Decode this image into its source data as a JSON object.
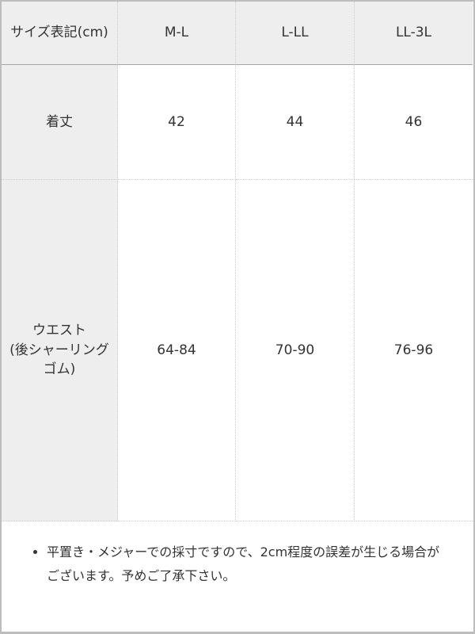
{
  "table": {
    "header": {
      "label": "サイズ表記(cm)",
      "sizes": [
        "M-L",
        "L-LL",
        "LL-3L"
      ]
    },
    "rows": [
      {
        "label": "着丈",
        "values": [
          "42",
          "44",
          "46"
        ]
      },
      {
        "label": "ウエスト\n(後シャーリングゴム)",
        "values": [
          "64-84",
          "70-90",
          "76-96"
        ]
      }
    ]
  },
  "note": {
    "text": "平置き・メジャーでの採寸ですので、2cm程度の誤差が生じる場合がございます。予めご了承下さい。"
  },
  "colors": {
    "header_bg": "#eeeeee",
    "outer_border": "#bdbdbd",
    "header_underline": "#a6a6a6",
    "dotted_border": "#cccccc",
    "text": "#333333"
  }
}
